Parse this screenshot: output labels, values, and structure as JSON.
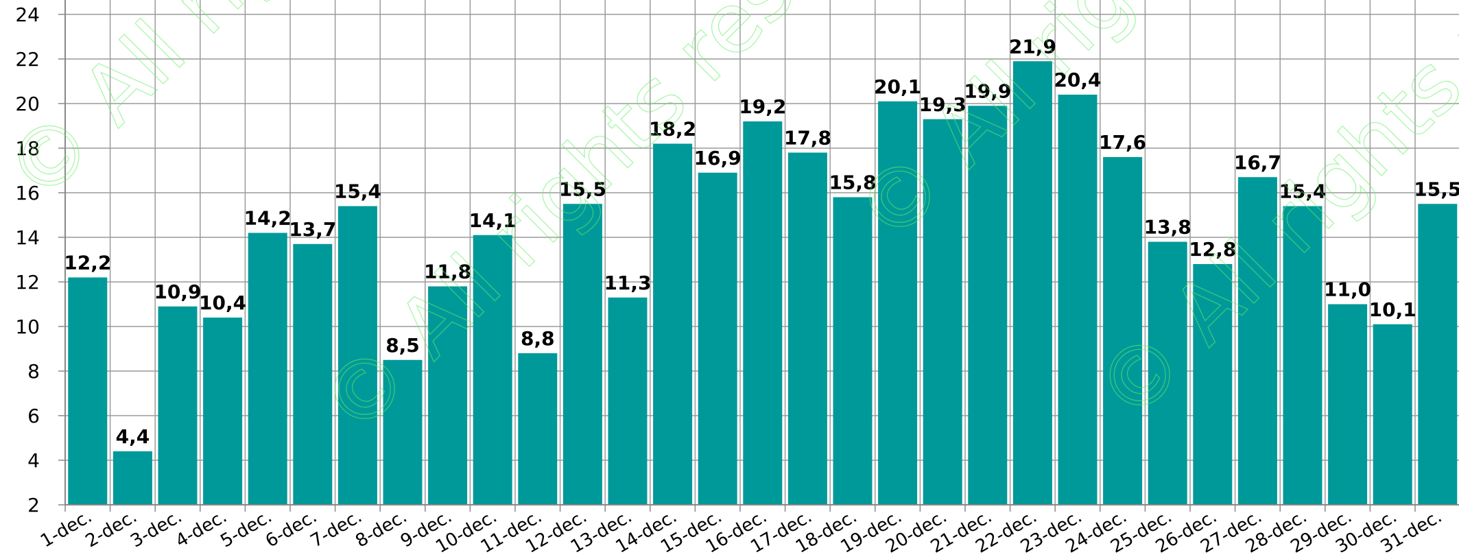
{
  "chart_data": {
    "type": "bar",
    "categories": [
      "1-dec.",
      "2-dec.",
      "3-dec.",
      "4-dec.",
      "5-dec.",
      "6-dec.",
      "7-dec.",
      "8-dec.",
      "9-dec.",
      "10-dec.",
      "11-dec.",
      "12-dec.",
      "13-dec.",
      "14-dec.",
      "15-dec.",
      "16-dec.",
      "17-dec.",
      "18-dec.",
      "19-dec.",
      "20-dec.",
      "21-dec.",
      "22-dec.",
      "23-dec.",
      "24-dec.",
      "25-dec.",
      "26-dec.",
      "27-dec.",
      "28-dec.",
      "29-dec.",
      "30-dec.",
      "31-dec."
    ],
    "values": [
      12.2,
      4.4,
      10.9,
      10.4,
      14.2,
      13.7,
      15.4,
      8.5,
      11.8,
      14.1,
      8.8,
      15.5,
      11.3,
      18.2,
      16.9,
      19.2,
      17.8,
      15.8,
      20.1,
      19.3,
      19.9,
      21.9,
      20.4,
      17.6,
      13.8,
      12.8,
      16.7,
      15.4,
      11.0,
      10.1,
      15.5
    ],
    "value_labels": [
      "12,2",
      "4,4",
      "10,9",
      "10,4",
      "14,2",
      "13,7",
      "15,4",
      "8,5",
      "11,8",
      "14,1",
      "8,8",
      "15,5",
      "11,3",
      "18,2",
      "16,9",
      "19,2",
      "17,8",
      "15,8",
      "20,1",
      "19,3",
      "19,9",
      "21,9",
      "20,4",
      "17,6",
      "13,8",
      "12,8",
      "16,7",
      "15,4",
      "11,0",
      "10,1",
      "15,5"
    ],
    "ylim": [
      2,
      24
    ],
    "yticks": [
      "2",
      "4",
      "6",
      "8",
      "10",
      "12",
      "14",
      "16",
      "18",
      "20",
      "22",
      "24"
    ],
    "grid": true,
    "bar_color": "#009999",
    "title": "",
    "xlabel": "",
    "ylabel": ""
  },
  "watermark": {
    "text": "© All rights reserved",
    "color": "#66ee66"
  }
}
